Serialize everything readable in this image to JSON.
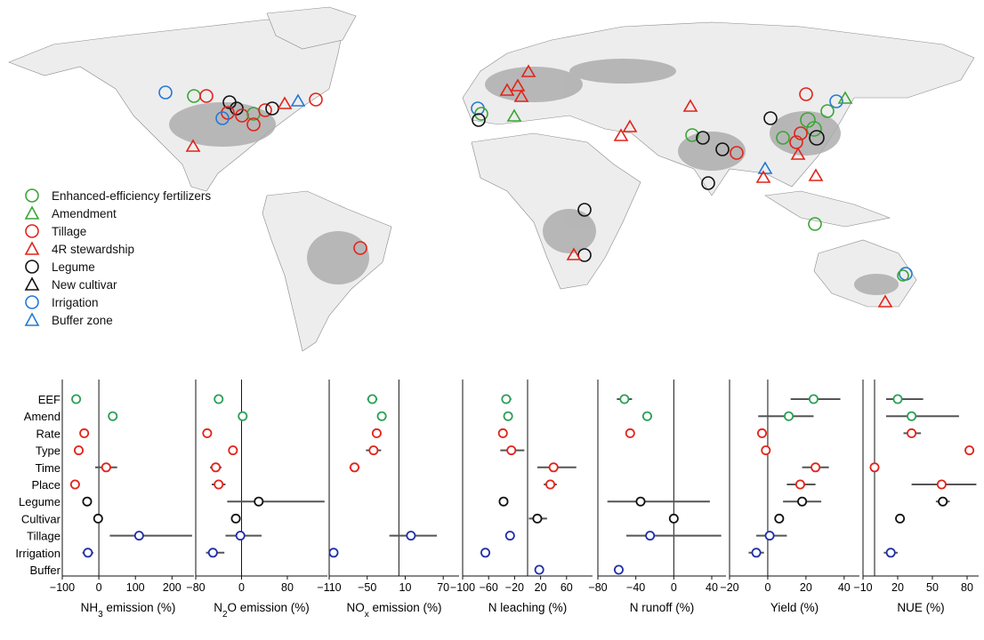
{
  "legend": [
    {
      "label": "Enhanced-efficiency fertilizers",
      "shape": "circle",
      "color": "#3aa535"
    },
    {
      "label": "Amendment",
      "shape": "triangle",
      "color": "#3aa535"
    },
    {
      "label": "Tillage",
      "shape": "circle",
      "color": "#e2231a"
    },
    {
      "label": "4R stewardship",
      "shape": "triangle",
      "color": "#e2231a"
    },
    {
      "label": "Legume",
      "shape": "circle",
      "color": "#111111"
    },
    {
      "label": "New cultivar",
      "shape": "triangle",
      "color": "#111111"
    },
    {
      "label": "Irrigation",
      "shape": "circle",
      "color": "#2478d6"
    },
    {
      "label": "Buffer zone",
      "shape": "triangle",
      "color": "#2478d6"
    }
  ],
  "colors": {
    "green": "#2aa055",
    "red": "#e2231a",
    "black": "#111111",
    "blue": "#1f2fa8",
    "bar": "#555555"
  },
  "chart_data": {
    "type": "forest",
    "categories": [
      "EEF",
      "Amend",
      "Rate",
      "Type",
      "Time",
      "Place",
      "Legume",
      "Cultivar",
      "Tillage",
      "Irrigation",
      "Buffer"
    ],
    "category_colors": [
      "green",
      "green",
      "red",
      "red",
      "red",
      "red",
      "black",
      "black",
      "blue",
      "blue",
      "blue"
    ],
    "panels": [
      {
        "xlabel_pre": "NH",
        "xlabel_sub": "3",
        "xlabel_post": " emission (%)",
        "xlim": [
          -100,
          260
        ],
        "ticks": [
          -100,
          0,
          100,
          200
        ],
        "tick_labels": [
          "−100",
          "0",
          "100",
          "200"
        ],
        "points": [
          {
            "v": -62,
            "lo": -68,
            "hi": -56
          },
          {
            "v": 38,
            "lo": 34,
            "hi": 42
          },
          {
            "v": -40,
            "lo": -45,
            "hi": -35
          },
          {
            "v": -55,
            "lo": -60,
            "hi": -50
          },
          {
            "v": 20,
            "lo": -10,
            "hi": 50
          },
          {
            "v": -65,
            "lo": -69,
            "hi": -61
          },
          {
            "v": -32,
            "lo": -36,
            "hi": -28
          },
          {
            "v": -2,
            "lo": -5,
            "hi": 1
          },
          {
            "v": 110,
            "lo": 30,
            "hi": 255
          },
          {
            "v": -30,
            "lo": -45,
            "hi": -15
          },
          null
        ]
      },
      {
        "xlabel_pre": "N",
        "xlabel_sub": "2",
        "xlabel_post": "O emission (%)",
        "xlim": [
          -80,
          150
        ],
        "ticks": [
          -80,
          0,
          80
        ],
        "tick_labels": [
          "−80",
          "0",
          "80"
        ],
        "points": [
          {
            "v": -40,
            "lo": -46,
            "hi": -34
          },
          {
            "v": 2,
            "lo": -5,
            "hi": 9
          },
          {
            "v": -60,
            "lo": -64,
            "hi": -56
          },
          {
            "v": -15,
            "lo": -22,
            "hi": -8
          },
          {
            "v": -45,
            "lo": -55,
            "hi": -35
          },
          {
            "v": -40,
            "lo": -52,
            "hi": -28
          },
          {
            "v": 30,
            "lo": -25,
            "hi": 145
          },
          {
            "v": -10,
            "lo": -13,
            "hi": -7
          },
          {
            "v": -2,
            "lo": -28,
            "hi": 35
          },
          {
            "v": -50,
            "lo": -62,
            "hi": -30
          },
          null
        ]
      },
      {
        "xlabel_pre": "NO",
        "xlabel_sub": "x",
        "xlabel_post": " emission (%)",
        "xlim": [
          -110,
          95
        ],
        "ticks": [
          -110,
          -50,
          10,
          70
        ],
        "tick_labels": [
          "−110",
          "−50",
          "10",
          "70"
        ],
        "points": [
          {
            "v": -42,
            "lo": -50,
            "hi": -34
          },
          {
            "v": -27,
            "lo": -32,
            "hi": -22
          },
          {
            "v": -35,
            "lo": -40,
            "hi": -30
          },
          {
            "v": -40,
            "lo": -52,
            "hi": -28
          },
          {
            "v": -70,
            "lo": -78,
            "hi": -62
          },
          null,
          null,
          null,
          {
            "v": 19,
            "lo": -15,
            "hi": 60
          },
          {
            "v": -103,
            "lo": -106,
            "hi": -100
          },
          null
        ]
      },
      {
        "xlabel_pre": "N leaching (%)",
        "xlabel_sub": "",
        "xlabel_post": "",
        "xlim": [
          -100,
          100
        ],
        "ticks": [
          -100,
          -60,
          -20,
          20,
          60
        ],
        "tick_labels": [
          "−100",
          "−60",
          "−20",
          "20",
          "60"
        ],
        "points": [
          {
            "v": -33,
            "lo": -40,
            "hi": -25
          },
          {
            "v": -30,
            "lo": -37,
            "hi": -23
          },
          {
            "v": -38,
            "lo": -41,
            "hi": -35
          },
          {
            "v": -25,
            "lo": -42,
            "hi": -5
          },
          {
            "v": 40,
            "lo": 15,
            "hi": 75
          },
          {
            "v": 35,
            "lo": 25,
            "hi": 45
          },
          {
            "v": -37,
            "lo": -41,
            "hi": -33
          },
          {
            "v": 15,
            "lo": 2,
            "hi": 30
          },
          {
            "v": -27,
            "lo": -31,
            "hi": -23
          },
          {
            "v": -65,
            "lo": -72,
            "hi": -58
          },
          {
            "v": 18,
            "lo": 16,
            "hi": 20
          }
        ]
      },
      {
        "xlabel_pre": "N runoff (%)",
        "xlabel_sub": "",
        "xlabel_post": "",
        "xlim": [
          -80,
          55
        ],
        "ticks": [
          -80,
          -40,
          0,
          40
        ],
        "tick_labels": [
          "−80",
          "−40",
          "0",
          "40"
        ],
        "points": [
          {
            "v": -52,
            "lo": -60,
            "hi": -44
          },
          {
            "v": -28,
            "lo": -33,
            "hi": -23
          },
          {
            "v": -46,
            "lo": -50,
            "hi": -42
          },
          null,
          null,
          null,
          {
            "v": -35,
            "lo": -70,
            "hi": 38
          },
          {
            "v": 0,
            "lo": -3,
            "hi": 3
          },
          {
            "v": -25,
            "lo": -50,
            "hi": 50
          },
          null,
          {
            "v": -58,
            "lo": -60,
            "hi": -56
          }
        ]
      },
      {
        "xlabel_pre": "Yield (%)",
        "xlabel_sub": "",
        "xlabel_post": "",
        "xlim": [
          -20,
          48
        ],
        "ticks": [
          -20,
          0,
          20,
          40
        ],
        "tick_labels": [
          "−20",
          "0",
          "20",
          "40"
        ],
        "points": [
          {
            "v": 24,
            "lo": 12,
            "hi": 38
          },
          {
            "v": 11,
            "lo": -5,
            "hi": 24
          },
          {
            "v": -3,
            "lo": -5,
            "hi": -1
          },
          {
            "v": -1,
            "lo": -3,
            "hi": 1
          },
          {
            "v": 25,
            "lo": 18,
            "hi": 32
          },
          {
            "v": 17,
            "lo": 10,
            "hi": 25
          },
          {
            "v": 18,
            "lo": 8,
            "hi": 28
          },
          {
            "v": 6,
            "lo": 4,
            "hi": 8
          },
          {
            "v": 1,
            "lo": -6,
            "hi": 10
          },
          {
            "v": -6,
            "lo": -10,
            "hi": -2
          },
          null
        ]
      },
      {
        "xlabel_pre": "NUE (%)",
        "xlabel_sub": "",
        "xlabel_post": "",
        "xlim": [
          -10,
          90
        ],
        "ticks": [
          -10,
          20,
          50,
          80
        ],
        "tick_labels": [
          "−10",
          "20",
          "50",
          "80"
        ],
        "points": [
          {
            "v": 20,
            "lo": 10,
            "hi": 42
          },
          {
            "v": 32,
            "lo": 10,
            "hi": 73
          },
          {
            "v": 32,
            "lo": 25,
            "hi": 40
          },
          {
            "v": 82,
            "lo": 80,
            "hi": 84
          },
          {
            "v": 0,
            "lo": -2,
            "hi": 4
          },
          {
            "v": 58,
            "lo": 32,
            "hi": 88
          },
          {
            "v": 59,
            "lo": 53,
            "hi": 65
          },
          {
            "v": 22,
            "lo": 20,
            "hi": 24
          },
          null,
          {
            "v": 14,
            "lo": 8,
            "hi": 20
          },
          null
        ]
      }
    ]
  }
}
